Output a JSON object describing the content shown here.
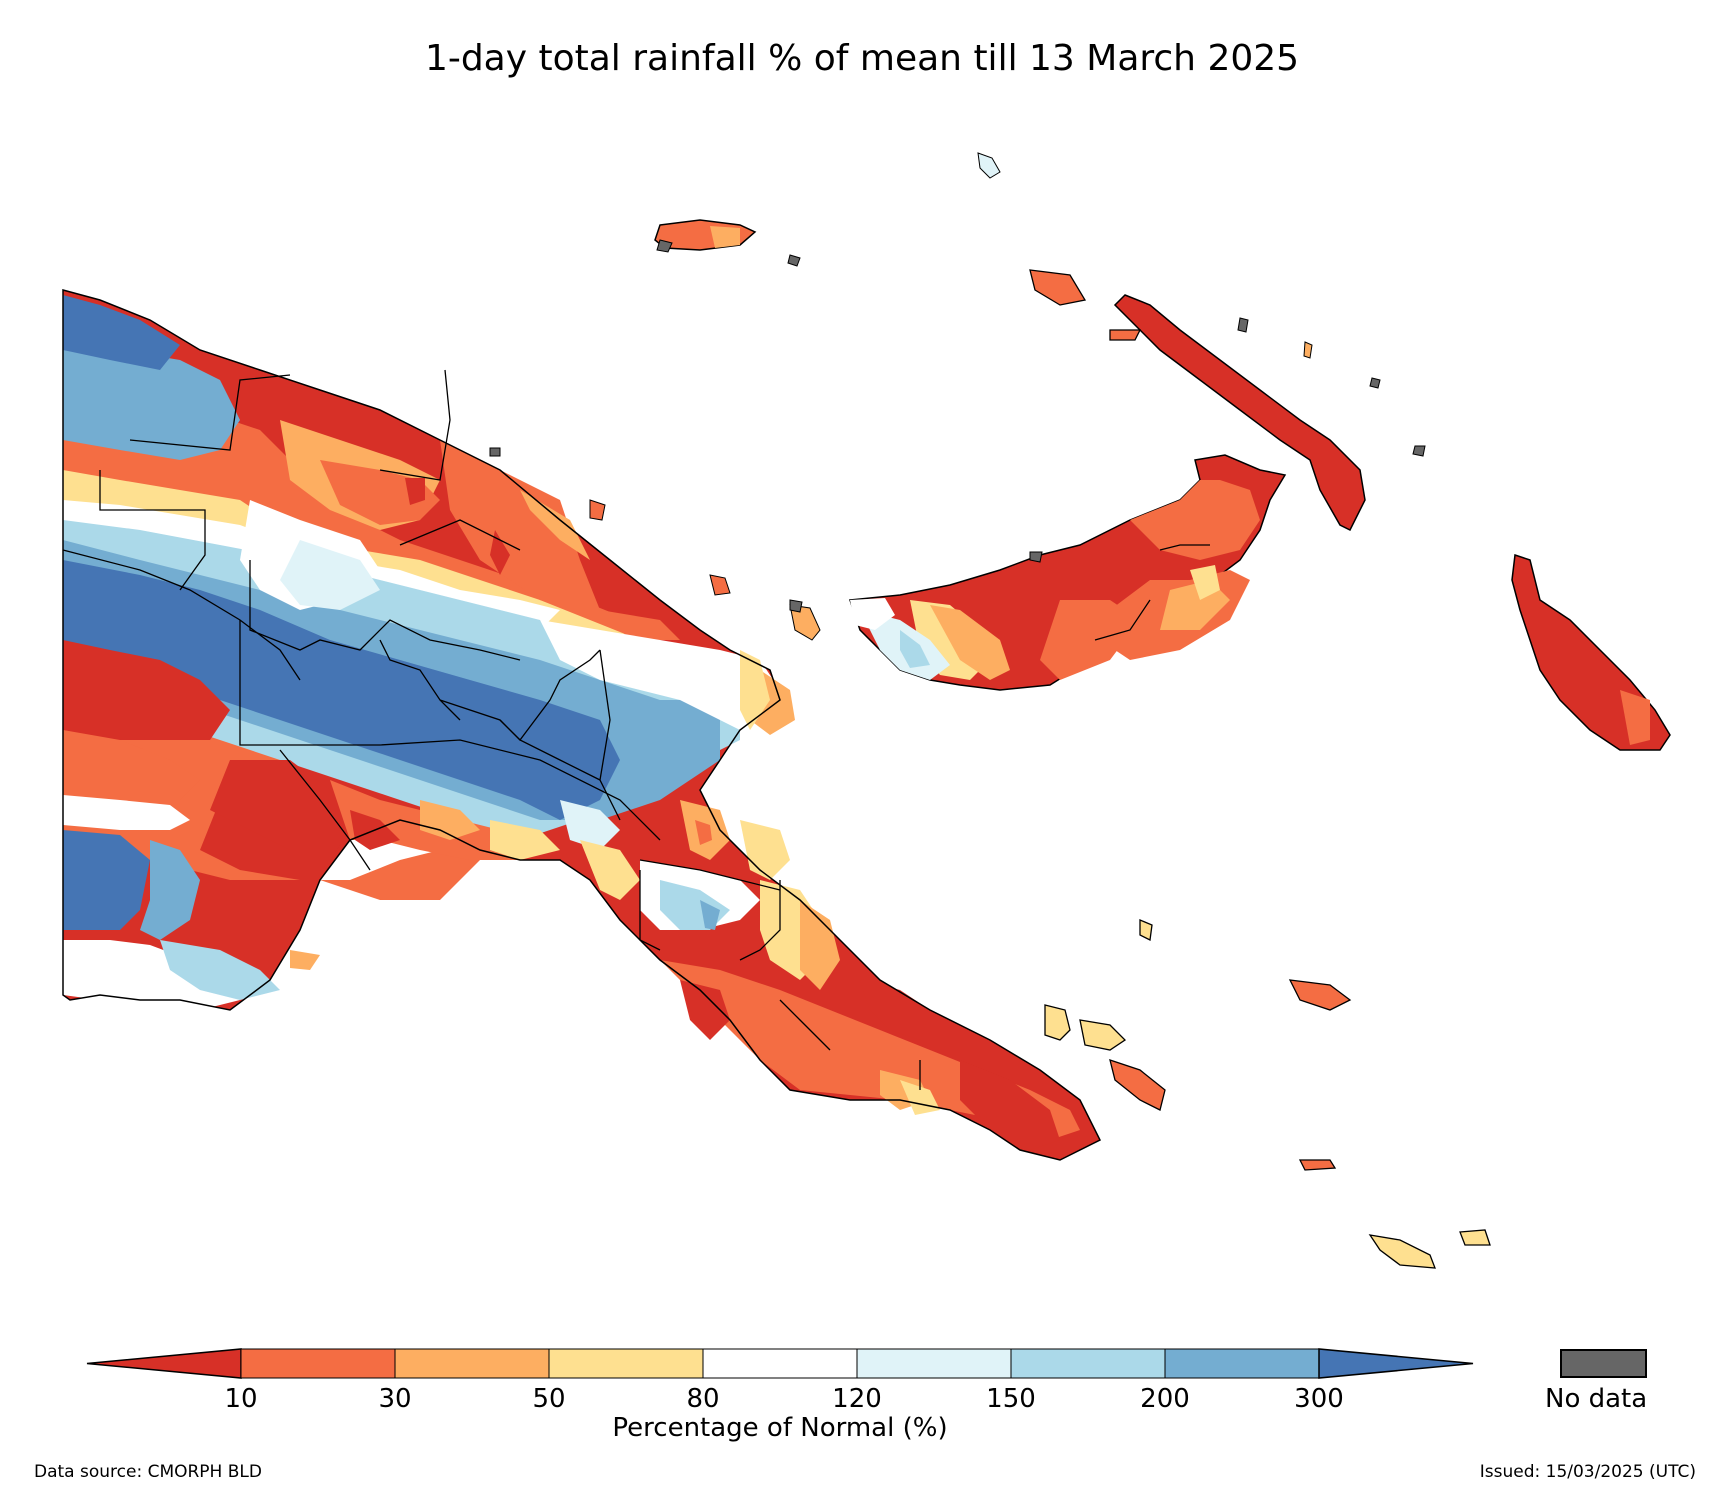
{
  "title": "1-day total rainfall % of mean till 13 March 2025",
  "legend": {
    "xlabel": "Percentage of Normal (%)",
    "ticks": [
      "10",
      "30",
      "50",
      "80",
      "120",
      "150",
      "200",
      "300"
    ],
    "colors": [
      "#d73027",
      "#f46d43",
      "#fdae61",
      "#fee090",
      "#ffffff",
      "#e0f3f8",
      "#abd9e9",
      "#74add1",
      "#4575b4"
    ],
    "nodata_label": "No data",
    "nodata_color": "#666666"
  },
  "footer": {
    "source": "Data source: CMORPH BLD",
    "issued": "Issued: 15/03/2025 (UTC)"
  }
}
